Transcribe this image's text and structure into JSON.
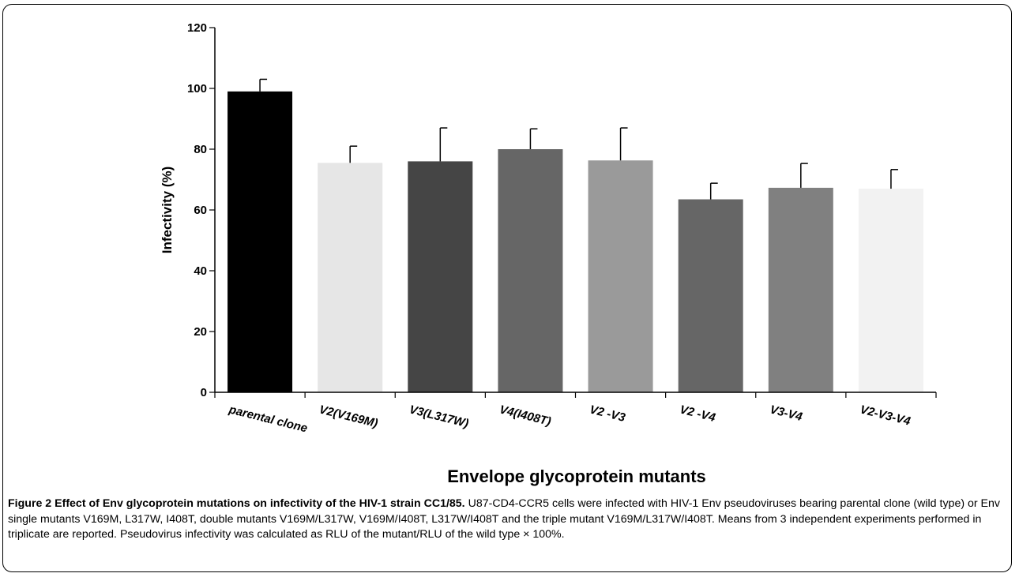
{
  "chart_data": {
    "type": "bar",
    "categories": [
      "parental clone",
      "V2(V169M)",
      "V3(L317W)",
      "V4(I408T)",
      "V2 -V3",
      "V2 -V4",
      "V3-V4",
      "V2-V3-V4"
    ],
    "values": [
      99,
      75.5,
      76,
      80,
      76.3,
      63.5,
      67.3,
      67
    ],
    "error": [
      4,
      5.5,
      11,
      6.7,
      10.7,
      5.3,
      8,
      6.3
    ],
    "colors": [
      "#000000",
      "#e6e6e6",
      "#454545",
      "#666666",
      "#9a9a9a",
      "#666666",
      "#808080",
      "#f2f2f2"
    ],
    "xlabel": "Envelope glycoprotein mutants",
    "ylabel": "Infectivity (%)",
    "ylim": [
      0,
      120
    ],
    "yticks": [
      "0",
      "20",
      "40",
      "60",
      "80",
      "100",
      "120"
    ],
    "grid": false
  },
  "caption": {
    "title": "Figure 2 Effect of Env glycoprotein mutations on infectivity of the HIV-1 strain CC1/85.",
    "body": "U87-CD4-CCR5 cells were infected with HIV-1 Env pseudoviruses bearing parental clone (wild type) or Env single mutants V169M, L317W, I408T, double mutants V169M/L317W, V169M/I408T, L317W/I408T and the triple mutant V169M/L317W/I408T. Means from 3 independent experiments performed in triplicate are reported. Pseudovirus infectivity was calculated as RLU of the mutant/RLU of the wild type × 100%."
  }
}
